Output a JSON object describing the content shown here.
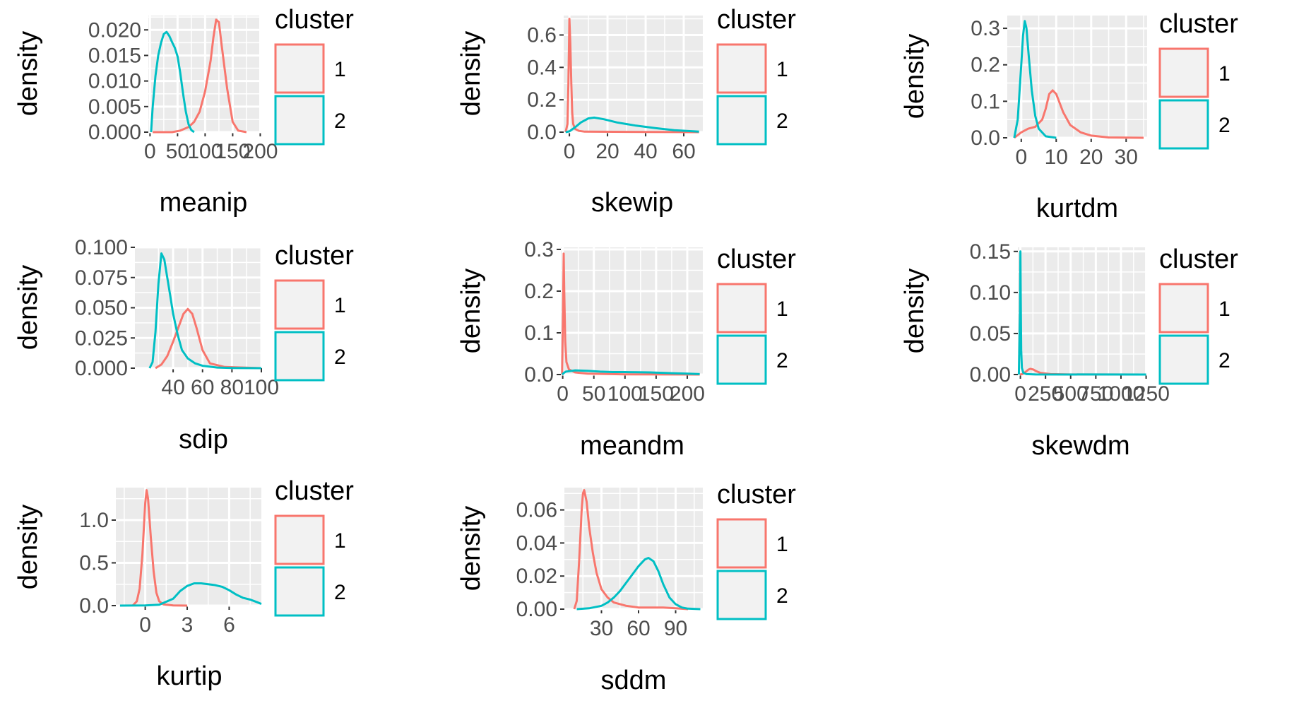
{
  "colors": {
    "panel_bg": "#ebebeb",
    "grid": "#ffffff",
    "key_bg": "#f2f2f2",
    "cluster_1": "#f8766d",
    "cluster_2": "#00bfc4"
  },
  "chart_data": [
    {
      "type": "line",
      "title": "",
      "xlabel": "meanip",
      "ylabel": "density",
      "xlim": [
        -3,
        202
      ],
      "ylim": [
        0,
        0.0228
      ],
      "xticks": [
        0,
        50,
        100,
        150,
        200
      ],
      "xtick_labels": [
        "0",
        "50",
        "100",
        "150",
        "200"
      ],
      "yticks": [
        0,
        0.005,
        0.01,
        0.015,
        0.02
      ],
      "ytick_labels": [
        "0.000",
        "0.005",
        "0.010",
        "0.015",
        "0.020"
      ],
      "grid": true,
      "legend": {
        "title": "cluster",
        "position": "right",
        "labels": [
          "1",
          "2"
        ]
      },
      "series": [
        {
          "name": "1",
          "x": [
            5,
            40,
            55,
            70,
            80,
            90,
            100,
            110,
            115,
            120,
            125,
            130,
            140,
            150,
            160,
            175
          ],
          "y": [
            0,
            0,
            0.0003,
            0.001,
            0.002,
            0.004,
            0.008,
            0.014,
            0.0185,
            0.022,
            0.0215,
            0.017,
            0.0085,
            0.002,
            0.0003,
            0
          ]
        },
        {
          "name": "2",
          "x": [
            2,
            5,
            10,
            15,
            20,
            25,
            30,
            35,
            40,
            45,
            50,
            55,
            60,
            65,
            70,
            75,
            80
          ],
          "y": [
            0,
            0.005,
            0.011,
            0.015,
            0.0175,
            0.0192,
            0.0196,
            0.0188,
            0.0176,
            0.0165,
            0.0148,
            0.0115,
            0.0075,
            0.004,
            0.0015,
            0.0004,
            0
          ]
        }
      ]
    },
    {
      "type": "line",
      "title": "",
      "xlabel": "skewip",
      "ylabel": "density",
      "xlim": [
        -3,
        70
      ],
      "ylim": [
        0,
        0.72
      ],
      "xticks": [
        0,
        20,
        40,
        60
      ],
      "xtick_labels": [
        "0",
        "20",
        "40",
        "60"
      ],
      "yticks": [
        0,
        0.2,
        0.4,
        0.6
      ],
      "ytick_labels": [
        "0.0",
        "0.2",
        "0.4",
        "0.6"
      ],
      "grid": true,
      "legend": {
        "title": "cluster",
        "position": "right",
        "labels": [
          "1",
          "2"
        ]
      },
      "series": [
        {
          "name": "1",
          "x": [
            -2,
            -1,
            -0.5,
            0,
            0.5,
            1,
            1.5,
            2,
            3,
            5,
            8,
            68
          ],
          "y": [
            0,
            0.05,
            0.3,
            0.7,
            0.55,
            0.3,
            0.12,
            0.05,
            0.02,
            0.008,
            0.003,
            0
          ]
        },
        {
          "name": "2",
          "x": [
            -2,
            0,
            3,
            6,
            10,
            13,
            18,
            25,
            35,
            45,
            55,
            68
          ],
          "y": [
            0,
            0.005,
            0.03,
            0.06,
            0.085,
            0.09,
            0.08,
            0.06,
            0.04,
            0.025,
            0.012,
            0.003
          ]
        }
      ]
    },
    {
      "type": "line",
      "title": "",
      "xlabel": "kurtdm",
      "ylabel": "density",
      "xlim": [
        -4,
        36
      ],
      "ylim": [
        0,
        0.335
      ],
      "xticks": [
        0,
        10,
        20,
        30
      ],
      "xtick_labels": [
        "0",
        "10",
        "20",
        "30"
      ],
      "yticks": [
        0,
        0.1,
        0.2,
        0.3
      ],
      "ytick_labels": [
        "0.0",
        "0.1",
        "0.2",
        "0.3"
      ],
      "grid": true,
      "legend": {
        "title": "cluster",
        "position": "right",
        "labels": [
          "1",
          "2"
        ]
      },
      "series": [
        {
          "name": "1",
          "x": [
            -2,
            0,
            2,
            4,
            6,
            7,
            8,
            9,
            10,
            12,
            14,
            17,
            20,
            25,
            35
          ],
          "y": [
            0,
            0.015,
            0.025,
            0.03,
            0.05,
            0.08,
            0.12,
            0.13,
            0.12,
            0.07,
            0.035,
            0.015,
            0.006,
            0.001,
            0
          ]
        },
        {
          "name": "2",
          "x": [
            -2,
            -1,
            0,
            0.5,
            1,
            1.5,
            2,
            3,
            4,
            5,
            7,
            10
          ],
          "y": [
            0,
            0.05,
            0.2,
            0.28,
            0.32,
            0.3,
            0.24,
            0.13,
            0.06,
            0.025,
            0.004,
            0
          ]
        }
      ]
    },
    {
      "type": "line",
      "title": "",
      "xlabel": "sdip",
      "ylabel": "density",
      "xlim": [
        14,
        100
      ],
      "ylim": [
        0,
        0.1
      ],
      "xticks": [
        40,
        60,
        80,
        100
      ],
      "xtick_labels": [
        "40",
        "60",
        "80",
        "100"
      ],
      "yticks": [
        0,
        0.025,
        0.05,
        0.075,
        0.1
      ],
      "ytick_labels": [
        "0.000",
        "0.025",
        "0.050",
        "0.075",
        "0.100"
      ],
      "grid": true,
      "legend": {
        "title": "cluster",
        "position": "right",
        "labels": [
          "1",
          "2"
        ]
      },
      "series": [
        {
          "name": "1",
          "x": [
            28,
            32,
            36,
            40,
            44,
            47,
            50,
            53,
            56,
            60,
            65,
            75,
            100
          ],
          "y": [
            0,
            0.003,
            0.01,
            0.022,
            0.035,
            0.045,
            0.049,
            0.045,
            0.033,
            0.015,
            0.004,
            0.001,
            0
          ]
        },
        {
          "name": "2",
          "x": [
            24,
            26,
            28,
            30,
            32,
            34,
            36,
            38,
            40,
            43,
            46,
            50,
            55,
            60,
            70,
            80,
            100
          ],
          "y": [
            0,
            0.005,
            0.03,
            0.07,
            0.095,
            0.09,
            0.075,
            0.06,
            0.045,
            0.028,
            0.015,
            0.008,
            0.004,
            0.002,
            0.0005,
            0.0002,
            0
          ]
        }
      ]
    },
    {
      "type": "line",
      "title": "",
      "xlabel": "meandm",
      "ylabel": "density",
      "xlim": [
        -3,
        225
      ],
      "ylim": [
        0,
        0.305
      ],
      "xticks": [
        0,
        50,
        100,
        150,
        200
      ],
      "xtick_labels": [
        "0",
        "50",
        "100",
        "150",
        "200"
      ],
      "yticks": [
        0,
        0.1,
        0.2,
        0.3
      ],
      "ytick_labels": [
        "0.0",
        "0.1",
        "0.2",
        "0.3"
      ],
      "grid": true,
      "legend": {
        "title": "cluster",
        "position": "right",
        "labels": [
          "1",
          "2"
        ]
      },
      "series": [
        {
          "name": "1",
          "x": [
            -1,
            0.5,
            1.5,
            2.5,
            4,
            6,
            10,
            20,
            40,
            100,
            220
          ],
          "y": [
            0,
            0.15,
            0.29,
            0.2,
            0.08,
            0.03,
            0.012,
            0.005,
            0.002,
            0.0005,
            0
          ]
        },
        {
          "name": "2",
          "x": [
            -1,
            2,
            5,
            10,
            20,
            40,
            60,
            80,
            100,
            120,
            140,
            160,
            180,
            200,
            220
          ],
          "y": [
            0,
            0.004,
            0.007,
            0.008,
            0.01,
            0.009,
            0.007,
            0.006,
            0.006,
            0.0055,
            0.005,
            0.004,
            0.003,
            0.002,
            0.001
          ]
        }
      ]
    },
    {
      "type": "line",
      "title": "",
      "xlabel": "skewdm",
      "ylabel": "density",
      "xlim": [
        -25,
        1260
      ],
      "ylim": [
        0,
        0.155
      ],
      "xticks": [
        0,
        250,
        500,
        750,
        1000,
        1250
      ],
      "xtick_labels": [
        "0",
        "250",
        "500",
        "750",
        "1000",
        "1250"
      ],
      "yticks": [
        0,
        0.05,
        0.1,
        0.15
      ],
      "ytick_labels": [
        "0.00",
        "0.05",
        "0.10",
        "0.15"
      ],
      "grid": true,
      "legend": {
        "title": "cluster",
        "position": "right",
        "labels": [
          "1",
          "2"
        ]
      },
      "series": [
        {
          "name": "1",
          "x": [
            -5,
            20,
            50,
            80,
            100,
            130,
            160,
            200,
            300,
            500,
            1250
          ],
          "y": [
            0,
            0.0005,
            0.003,
            0.006,
            0.007,
            0.006,
            0.004,
            0.002,
            0.0005,
            0.0001,
            0
          ]
        },
        {
          "name": "2",
          "x": [
            -15,
            -3,
            0,
            3,
            8,
            15,
            30,
            60,
            150,
            1250
          ],
          "y": [
            0,
            0.08,
            0.15,
            0.1,
            0.03,
            0.008,
            0.002,
            0.0005,
            0.0001,
            0
          ]
        }
      ]
    },
    {
      "type": "line",
      "title": "",
      "xlabel": "kurtip",
      "ylabel": "density",
      "xlim": [
        -2.1,
        8.3
      ],
      "ylim": [
        0,
        1.38
      ],
      "xticks": [
        0,
        3,
        6
      ],
      "xtick_labels": [
        "0",
        "3",
        "6"
      ],
      "yticks": [
        0,
        0.5,
        1.0
      ],
      "ytick_labels": [
        "0.0",
        "0.5",
        "1.0"
      ],
      "grid": true,
      "legend": {
        "title": "cluster",
        "position": "right",
        "labels": [
          "1",
          "2"
        ]
      },
      "series": [
        {
          "name": "1",
          "x": [
            -0.9,
            -0.6,
            -0.4,
            -0.2,
            0,
            0.1,
            0.2,
            0.4,
            0.6,
            0.8,
            1.0,
            1.3,
            2.0,
            3.0
          ],
          "y": [
            0,
            0.05,
            0.2,
            0.6,
            1.2,
            1.35,
            1.25,
            0.8,
            0.4,
            0.15,
            0.05,
            0.015,
            0.002,
            0
          ]
        },
        {
          "name": "2",
          "x": [
            -1.8,
            0,
            1.0,
            2.0,
            2.5,
            3.0,
            3.5,
            4.0,
            4.5,
            5.0,
            5.5,
            6.0,
            6.5,
            7.0,
            7.5,
            8.0,
            8.3
          ],
          "y": [
            0,
            0.002,
            0.01,
            0.08,
            0.17,
            0.23,
            0.26,
            0.26,
            0.25,
            0.24,
            0.22,
            0.18,
            0.13,
            0.09,
            0.07,
            0.04,
            0.02
          ]
        }
      ]
    },
    {
      "type": "line",
      "title": "",
      "xlabel": "sddm",
      "ylabel": "density",
      "xlim": [
        0,
        112
      ],
      "ylim": [
        0,
        0.0735
      ],
      "xticks": [
        30,
        60,
        90
      ],
      "xtick_labels": [
        "30",
        "60",
        "90"
      ],
      "yticks": [
        0,
        0.02,
        0.04,
        0.06
      ],
      "ytick_labels": [
        "0.00",
        "0.02",
        "0.04",
        "0.06"
      ],
      "grid": true,
      "legend": {
        "title": "cluster",
        "position": "right",
        "labels": [
          "1",
          "2"
        ]
      },
      "series": [
        {
          "name": "1",
          "x": [
            8,
            10,
            12,
            14,
            15,
            16,
            18,
            20,
            23,
            26,
            30,
            35,
            40,
            50,
            60,
            70,
            80,
            90,
            100
          ],
          "y": [
            0,
            0.005,
            0.03,
            0.06,
            0.07,
            0.072,
            0.065,
            0.05,
            0.034,
            0.022,
            0.012,
            0.007,
            0.004,
            0.002,
            0.001,
            0.001,
            0.001,
            0.0005,
            0
          ]
        },
        {
          "name": "2",
          "x": [
            10,
            20,
            30,
            35,
            40,
            45,
            50,
            55,
            60,
            65,
            68,
            72,
            76,
            80,
            85,
            90,
            95,
            100,
            110
          ],
          "y": [
            0,
            0.0005,
            0.002,
            0.004,
            0.007,
            0.011,
            0.016,
            0.021,
            0.026,
            0.03,
            0.031,
            0.029,
            0.023,
            0.015,
            0.007,
            0.003,
            0.001,
            0.0003,
            0
          ]
        }
      ]
    }
  ]
}
